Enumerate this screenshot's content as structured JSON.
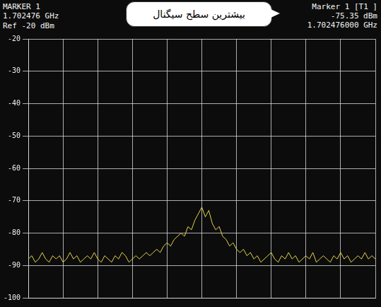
{
  "chart_data": {
    "type": "line",
    "marker_left": [
      "MARKER 1",
      "1.702476 GHz"
    ],
    "ref_level": "Ref -20 dBm",
    "marker_right": [
      "Marker 1 [T1 ]",
      "-75.35 dBm",
      "1.702476000 GHz"
    ],
    "callout": "بیشترین سطح سیگنال",
    "x": [
      0,
      1,
      2,
      3,
      4,
      5,
      6,
      7,
      8,
      9,
      10,
      11,
      12,
      13,
      14,
      15,
      16,
      17,
      18,
      19,
      20,
      21,
      22,
      23,
      24,
      25,
      26,
      27,
      28,
      29,
      30,
      31,
      32,
      33,
      34,
      35,
      36,
      37,
      38,
      39,
      40,
      41,
      42,
      43,
      44,
      45,
      46,
      47,
      48,
      49,
      50,
      51,
      52,
      53,
      54,
      55,
      56,
      57,
      58,
      59,
      60,
      61,
      62,
      63,
      64,
      65,
      66,
      67,
      68,
      69,
      70,
      71,
      72,
      73,
      74,
      75,
      76,
      77,
      78,
      79,
      80,
      81,
      82,
      83,
      84,
      85,
      86,
      87,
      88,
      89,
      90,
      91,
      92,
      93,
      94,
      95,
      96,
      97,
      98,
      99,
      100
    ],
    "values": [
      -88,
      -87,
      -89,
      -88,
      -86,
      -88,
      -89,
      -87,
      -88,
      -87,
      -89,
      -88,
      -86,
      -88,
      -87,
      -89,
      -88,
      -87,
      -88,
      -86,
      -88,
      -89,
      -87,
      -88,
      -89,
      -87,
      -88,
      -86,
      -87,
      -89,
      -88,
      -87,
      -88,
      -87,
      -86,
      -87,
      -86,
      -85,
      -86,
      -84,
      -83,
      -84,
      -82,
      -81,
      -80,
      -81,
      -78,
      -79,
      -76,
      -74,
      -72,
      -75,
      -73,
      -77,
      -79,
      -78,
      -81,
      -82,
      -84,
      -83,
      -85,
      -86,
      -85,
      -87,
      -86,
      -88,
      -87,
      -89,
      -88,
      -87,
      -86,
      -88,
      -89,
      -87,
      -88,
      -86,
      -88,
      -87,
      -89,
      -88,
      -87,
      -88,
      -86,
      -89,
      -88,
      -87,
      -88,
      -89,
      -87,
      -88,
      -86,
      -88,
      -87,
      -89,
      -88,
      -87,
      -88,
      -86,
      -88,
      -87,
      -88
    ],
    "color": "#e6d34a",
    "xlim": [
      0,
      100
    ],
    "xticks": [
      0,
      10,
      20,
      30,
      40,
      50,
      60,
      70,
      80,
      90,
      100
    ],
    "ylim": [
      -100,
      -20
    ],
    "yticks": [
      -100,
      -90,
      -80,
      -70,
      -60,
      -50,
      -40,
      -30,
      -20
    ],
    "grid": true,
    "tick_labels": "y"
  }
}
